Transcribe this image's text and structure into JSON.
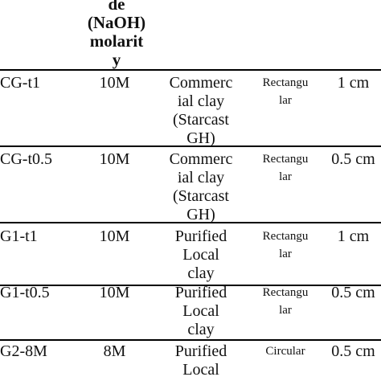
{
  "header": {
    "molarity_label": "de\n(NaOH)\nmolarit\ny"
  },
  "rows": [
    {
      "id": "CG-t1",
      "molarity": "10M",
      "clay": "Commerc\nial clay\n(Starcast\nGH)",
      "shape": "Rectangu\nlar",
      "size": "1 cm"
    },
    {
      "id": "CG-t0.5",
      "molarity": "10M",
      "clay": "Commerc\nial clay\n(Starcast\nGH)",
      "shape": "Rectangu\nlar",
      "size": "0.5 cm"
    },
    {
      "id": "G1-t1",
      "molarity": "10M",
      "clay": "Purified\nLocal\nclay",
      "shape": "Rectangu\nlar",
      "size": "1 cm"
    },
    {
      "id": "G1-t0.5",
      "molarity": "10M",
      "clay": "Purified\nLocal\nclay",
      "shape": "Rectangu\nlar",
      "size": "0.5 cm"
    },
    {
      "id": "G2-8M",
      "molarity": "8M",
      "clay": "Purified\nLocal",
      "shape": "Circular",
      "size": "0.5 cm"
    }
  ]
}
